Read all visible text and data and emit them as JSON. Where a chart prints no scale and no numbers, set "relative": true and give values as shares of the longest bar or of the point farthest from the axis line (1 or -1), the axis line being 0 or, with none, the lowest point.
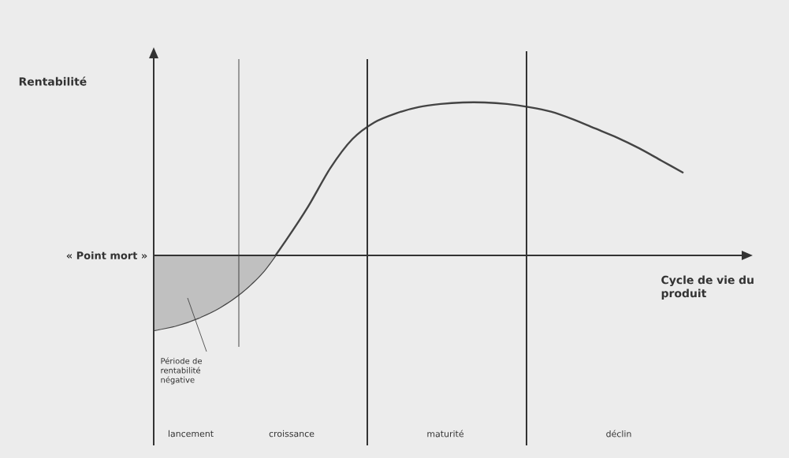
{
  "chart_data": {
    "type": "line",
    "relative": true,
    "xlabel": "Cycle de vie du produit",
    "marker": "none",
    "categories": [
      null,
      null,
      null,
      null,
      null,
      null,
      null,
      null,
      null,
      null,
      null,
      null,
      null,
      null,
      null,
      null,
      null,
      null,
      null,
      null,
      null,
      null,
      null,
      null,
      null
    ],
    "series": [
      {
        "color": "#444444",
        "values": [
          -0.49,
          -0.46,
          -0.41,
          -0.34,
          -0.24,
          -0.1,
          0.1,
          0.32,
          0.57,
          0.76,
          0.87,
          0.93,
          0.97,
          0.99,
          1,
          1,
          0.99,
          0.97,
          0.94,
          0.89,
          0.83,
          0.77,
          0.7,
          0.62,
          0.54
        ]
      },
      {
        "type": "area",
        "color": "#c0c0c0",
        "values": [
          -0.49,
          -0.46,
          -0.41,
          -0.34,
          -0.24,
          -0.1,
          0.1,
          null,
          null,
          null,
          null,
          null,
          null,
          null,
          null,
          null,
          null,
          null,
          null,
          null,
          null,
          null,
          null,
          null,
          null
        ]
      }
    ],
    "ref_lines": [
      {
        "axis": "y",
        "value": 0,
        "label": "« Point mort »"
      }
    ],
    "annotations": [
      "Rentabilité",
      "Période de rentabilité négative",
      "lancement",
      "croissance",
      "maturité",
      "déclin"
    ]
  }
}
